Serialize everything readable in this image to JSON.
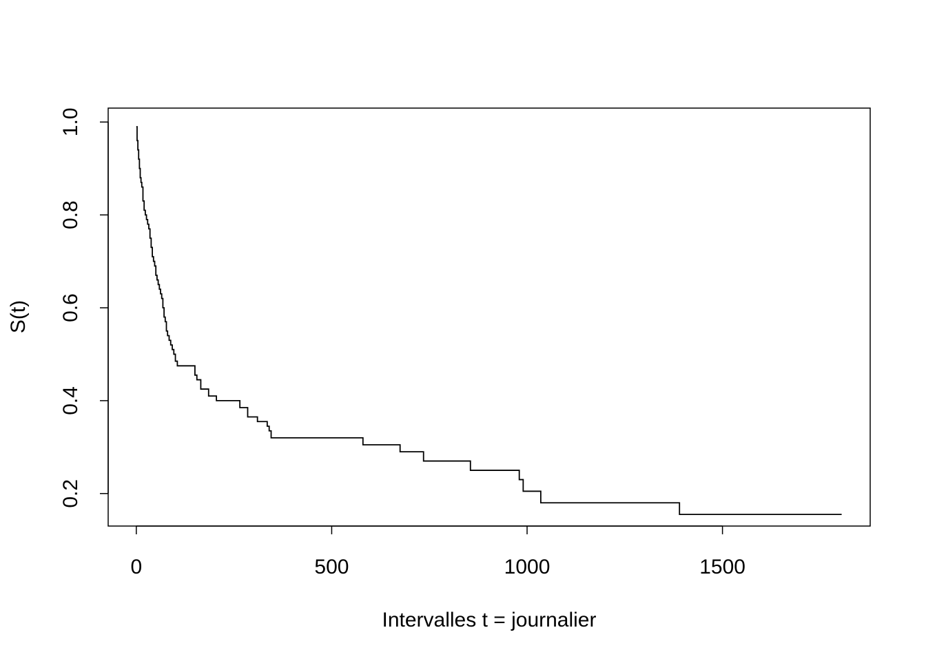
{
  "chart_data": {
    "type": "line",
    "subtype": "step",
    "title": "",
    "xlabel": "Intervalles t = journalier",
    "ylabel": "S(t)",
    "xlim": [
      -72,
      1878
    ],
    "ylim": [
      0.13,
      1.03
    ],
    "xticks": [
      0,
      500,
      1000,
      1500
    ],
    "yticks": [
      0.2,
      0.4,
      0.6,
      0.8,
      1.0
    ],
    "xtick_labels": [
      "0",
      "500",
      "1000",
      "1500"
    ],
    "ytick_labels": [
      "0.2",
      "0.4",
      "0.6",
      "0.8",
      "1.0"
    ],
    "grid": false,
    "line_color": "#000000",
    "series": [
      {
        "x": [
          0,
          2,
          4,
          6,
          8,
          10,
          12,
          14,
          17,
          20,
          23,
          26,
          29,
          32,
          35,
          38,
          41,
          44,
          47,
          50,
          53,
          56,
          59,
          62,
          65,
          68,
          71,
          74,
          77,
          80,
          84,
          88,
          92,
          96,
          100,
          105,
          110,
          150,
          155,
          165,
          185,
          205,
          215,
          265,
          285,
          310,
          335,
          340,
          345,
          580,
          675,
          735,
          855,
          980,
          990,
          1035,
          1390,
          1805
        ],
        "y": [
          0.99,
          0.96,
          0.94,
          0.92,
          0.9,
          0.88,
          0.87,
          0.86,
          0.83,
          0.81,
          0.8,
          0.79,
          0.78,
          0.77,
          0.75,
          0.73,
          0.71,
          0.7,
          0.69,
          0.67,
          0.66,
          0.65,
          0.64,
          0.63,
          0.62,
          0.6,
          0.58,
          0.57,
          0.55,
          0.54,
          0.53,
          0.52,
          0.51,
          0.5,
          0.485,
          0.475,
          0.475,
          0.455,
          0.445,
          0.425,
          0.41,
          0.4,
          0.4,
          0.385,
          0.365,
          0.355,
          0.345,
          0.335,
          0.32,
          0.305,
          0.29,
          0.27,
          0.25,
          0.23,
          0.205,
          0.18,
          0.155,
          0.155
        ]
      }
    ]
  }
}
